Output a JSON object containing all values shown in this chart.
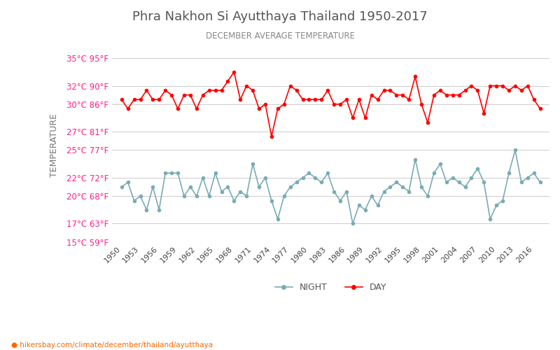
{
  "title": "Phra Nakhon Si Ayutthaya Thailand 1950-2017",
  "subtitle": "DECEMBER AVERAGE TEMPERATURE",
  "ylabel": "TEMPERATURE",
  "xlabel_url": "hikersbay.com/climate/december/thailand/ayutthaya",
  "legend_night": "NIGHT",
  "legend_day": "DAY",
  "years": [
    1950,
    1951,
    1952,
    1953,
    1954,
    1955,
    1956,
    1957,
    1958,
    1959,
    1960,
    1961,
    1962,
    1963,
    1964,
    1965,
    1966,
    1967,
    1968,
    1969,
    1970,
    1971,
    1972,
    1973,
    1974,
    1975,
    1976,
    1977,
    1978,
    1979,
    1980,
    1981,
    1982,
    1983,
    1984,
    1985,
    1986,
    1987,
    1988,
    1989,
    1990,
    1991,
    1992,
    1993,
    1994,
    1995,
    1996,
    1997,
    1998,
    1999,
    2000,
    2001,
    2002,
    2003,
    2004,
    2005,
    2006,
    2007,
    2008,
    2009,
    2010,
    2011,
    2012,
    2013,
    2014,
    2015,
    2016,
    2017
  ],
  "day": [
    30.5,
    29.5,
    30.5,
    30.5,
    31.5,
    30.5,
    30.5,
    31.5,
    31.0,
    29.5,
    31.0,
    31.0,
    29.5,
    31.0,
    31.5,
    31.5,
    31.5,
    32.5,
    33.5,
    30.5,
    32.0,
    31.5,
    29.5,
    30.0,
    26.5,
    29.5,
    30.0,
    32.0,
    31.5,
    30.5,
    30.5,
    30.5,
    30.5,
    31.5,
    30.0,
    30.0,
    30.5,
    28.5,
    30.5,
    28.5,
    31.0,
    30.5,
    31.5,
    31.5,
    31.0,
    31.0,
    30.5,
    33.0,
    30.0,
    28.0,
    31.0,
    31.5,
    31.0,
    31.0,
    31.0,
    31.5,
    32.0,
    31.5,
    29.0,
    32.0,
    32.0,
    32.0,
    31.5,
    32.0,
    31.5,
    32.0,
    30.5,
    29.5
  ],
  "night": [
    21.0,
    21.5,
    19.5,
    20.0,
    18.5,
    21.0,
    18.5,
    22.5,
    22.5,
    22.5,
    20.0,
    21.0,
    20.0,
    22.0,
    20.0,
    22.5,
    20.5,
    21.0,
    19.5,
    20.5,
    20.0,
    23.5,
    21.0,
    22.0,
    19.5,
    17.5,
    20.0,
    21.0,
    21.5,
    22.0,
    22.5,
    22.0,
    21.5,
    22.5,
    20.5,
    19.5,
    20.5,
    17.0,
    19.0,
    18.5,
    20.0,
    19.0,
    20.5,
    21.0,
    21.5,
    21.0,
    20.5,
    24.0,
    21.0,
    20.0,
    22.5,
    23.5,
    21.5,
    22.0,
    21.5,
    21.0,
    22.0,
    23.0,
    21.5,
    17.5,
    19.0,
    19.5,
    22.5,
    25.0,
    21.5,
    22.0,
    22.5,
    21.5
  ],
  "yticks_c": [
    15,
    17,
    20,
    22,
    25,
    27,
    30,
    32,
    35
  ],
  "yticks_f": [
    59,
    63,
    68,
    72,
    77,
    81,
    86,
    90,
    95
  ],
  "ylim": [
    15,
    36
  ],
  "day_color": "#ff0000",
  "night_color": "#7aacb5",
  "title_color": "#555555",
  "subtitle_color": "#888888",
  "ylabel_color": "#777777",
  "tick_label_color": "#ff1f8e",
  "bg_color": "#ffffff",
  "grid_color": "#cccccc",
  "url_color": "#ff6600"
}
